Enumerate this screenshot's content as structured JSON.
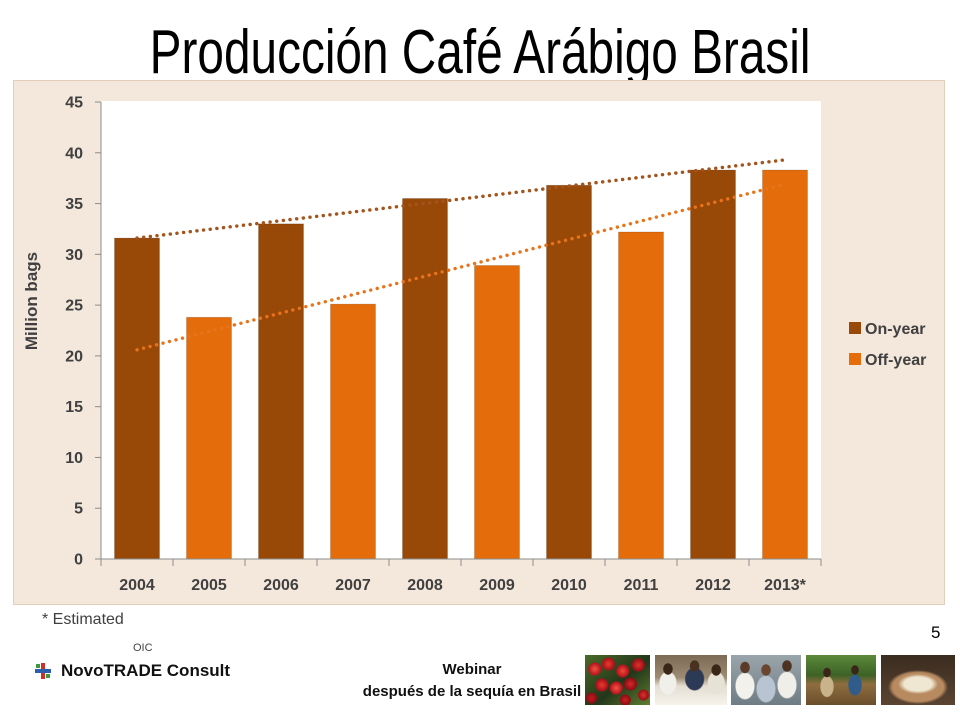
{
  "chart_data": {
    "type": "bar",
    "title": "Producción Café Arábigo Brasil",
    "ylabel": "Million bags",
    "ylim": [
      0,
      45
    ],
    "yticks": [
      0,
      5,
      10,
      15,
      20,
      25,
      30,
      35,
      40,
      45
    ],
    "grid": false,
    "legend_position": "right",
    "categories": [
      "2004",
      "2005",
      "2006",
      "2007",
      "2008",
      "2009",
      "2010",
      "2011",
      "2012",
      "2013*"
    ],
    "series": [
      {
        "name": "On-year",
        "color": "#984807",
        "values": [
          31.6,
          null,
          33.0,
          null,
          35.5,
          null,
          36.8,
          null,
          38.3,
          null
        ]
      },
      {
        "name": "Off-year",
        "color": "#E46C0A",
        "values": [
          null,
          23.8,
          null,
          25.1,
          null,
          28.9,
          null,
          32.2,
          null,
          38.3
        ]
      }
    ],
    "trendlines": [
      {
        "series": "On-year",
        "style": "dotted",
        "color": "#A3531C",
        "from": {
          "category": "2004",
          "value": 31.6
        },
        "to": {
          "category": "2013*",
          "value": 39.3
        }
      },
      {
        "series": "Off-year",
        "style": "dotted",
        "color": "#E8731B",
        "from": {
          "category": "2004",
          "value": 20.6
        },
        "to": {
          "category": "2013*",
          "value": 36.9
        }
      }
    ],
    "footnote": "* Estimated"
  },
  "slide": {
    "page_number": "5",
    "footer": {
      "org": "OIC",
      "brand": "NovoTRADE Consult",
      "event_line1": "Webinar",
      "event_line2": "después de la sequía en Brasil"
    },
    "icons": {
      "logo": "novotrade-logo-icon"
    }
  }
}
